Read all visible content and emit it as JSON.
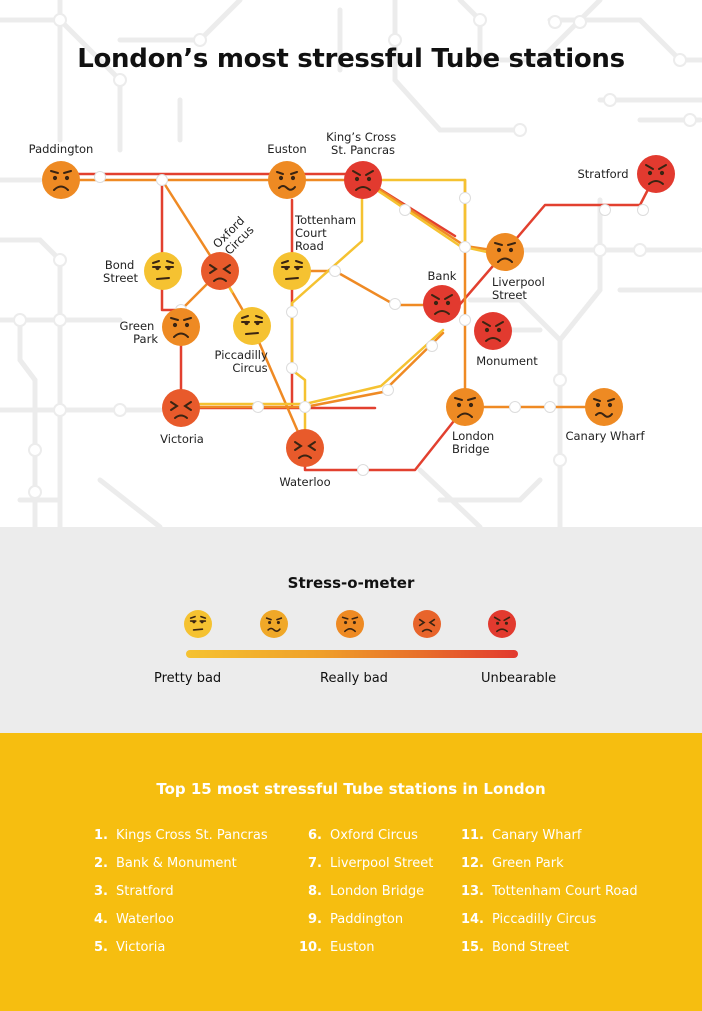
{
  "title": "London’s most stressful Tube stations",
  "stations": [
    {
      "name": "Paddington",
      "level": "really-bad"
    },
    {
      "name": "Euston",
      "level": "really-bad"
    },
    {
      "name": "King’s Cross St. Pancras",
      "line1": "King’s Cross",
      "line2": "St. Pancras",
      "level": "unbearable"
    },
    {
      "name": "Stratford",
      "level": "unbearable"
    },
    {
      "name": "Tottenham Court Road",
      "line1": "Tottenham",
      "line2": "Court",
      "line3": "Road",
      "level": "pretty-bad"
    },
    {
      "name": "Oxford Circus",
      "line1": "Oxford",
      "line2": "Circus",
      "level": "unbearable"
    },
    {
      "name": "Bond Street",
      "line1": "Bond",
      "line2": "Street",
      "level": "pretty-bad"
    },
    {
      "name": "Green Park",
      "line1": "Green",
      "line2": "Park",
      "level": "really-bad"
    },
    {
      "name": "Piccadilly Circus",
      "line1": "Piccadilly",
      "line2": "Circus",
      "level": "pretty-bad"
    },
    {
      "name": "Bank",
      "level": "unbearable"
    },
    {
      "name": "Liverpool Street",
      "line1": "Liverpool",
      "line2": "Street",
      "level": "really-bad"
    },
    {
      "name": "Monument",
      "level": "unbearable"
    },
    {
      "name": "Victoria",
      "level": "unbearable"
    },
    {
      "name": "Waterloo",
      "level": "unbearable"
    },
    {
      "name": "London Bridge",
      "line1": "London",
      "line2": "Bridge",
      "level": "really-bad"
    },
    {
      "name": "Canary Wharf",
      "level": "really-bad"
    }
  ],
  "meter": {
    "title": "Stress-o-meter",
    "labels": {
      "left": "Pretty bad",
      "middle": "Really bad",
      "right": "Unbearable"
    }
  },
  "colors": {
    "pretty_bad": "#f5c231",
    "really_bad": "#ee8a23",
    "unbearable": "#e23a2f",
    "line_red": "#e2402f",
    "line_orange": "#ef8a24",
    "line_yellow": "#f5c231",
    "list_background": "#f6be10",
    "meter_background": "#ececec"
  },
  "list": {
    "title": "Top 15 most stressful Tube stations in London",
    "items": [
      {
        "num": "1.",
        "name": "Kings Cross St. Pancras"
      },
      {
        "num": "2.",
        "name": "Bank & Monument"
      },
      {
        "num": "3.",
        "name": "Stratford"
      },
      {
        "num": "4.",
        "name": "Waterloo"
      },
      {
        "num": "5.",
        "name": "Victoria"
      },
      {
        "num": "6.",
        "name": "Oxford Circus"
      },
      {
        "num": "7.",
        "name": "Liverpool Street"
      },
      {
        "num": "8.",
        "name": "London Bridge"
      },
      {
        "num": "9.",
        "name": "Paddington"
      },
      {
        "num": "10.",
        "name": "Euston"
      },
      {
        "num": "11.",
        "name": "Canary Wharf"
      },
      {
        "num": "12.",
        "name": "Green Park"
      },
      {
        "num": "13.",
        "name": "Tottenham Court Road"
      },
      {
        "num": "14.",
        "name": "Piccadilly Circus"
      },
      {
        "num": "15.",
        "name": "Bond Street"
      }
    ]
  }
}
